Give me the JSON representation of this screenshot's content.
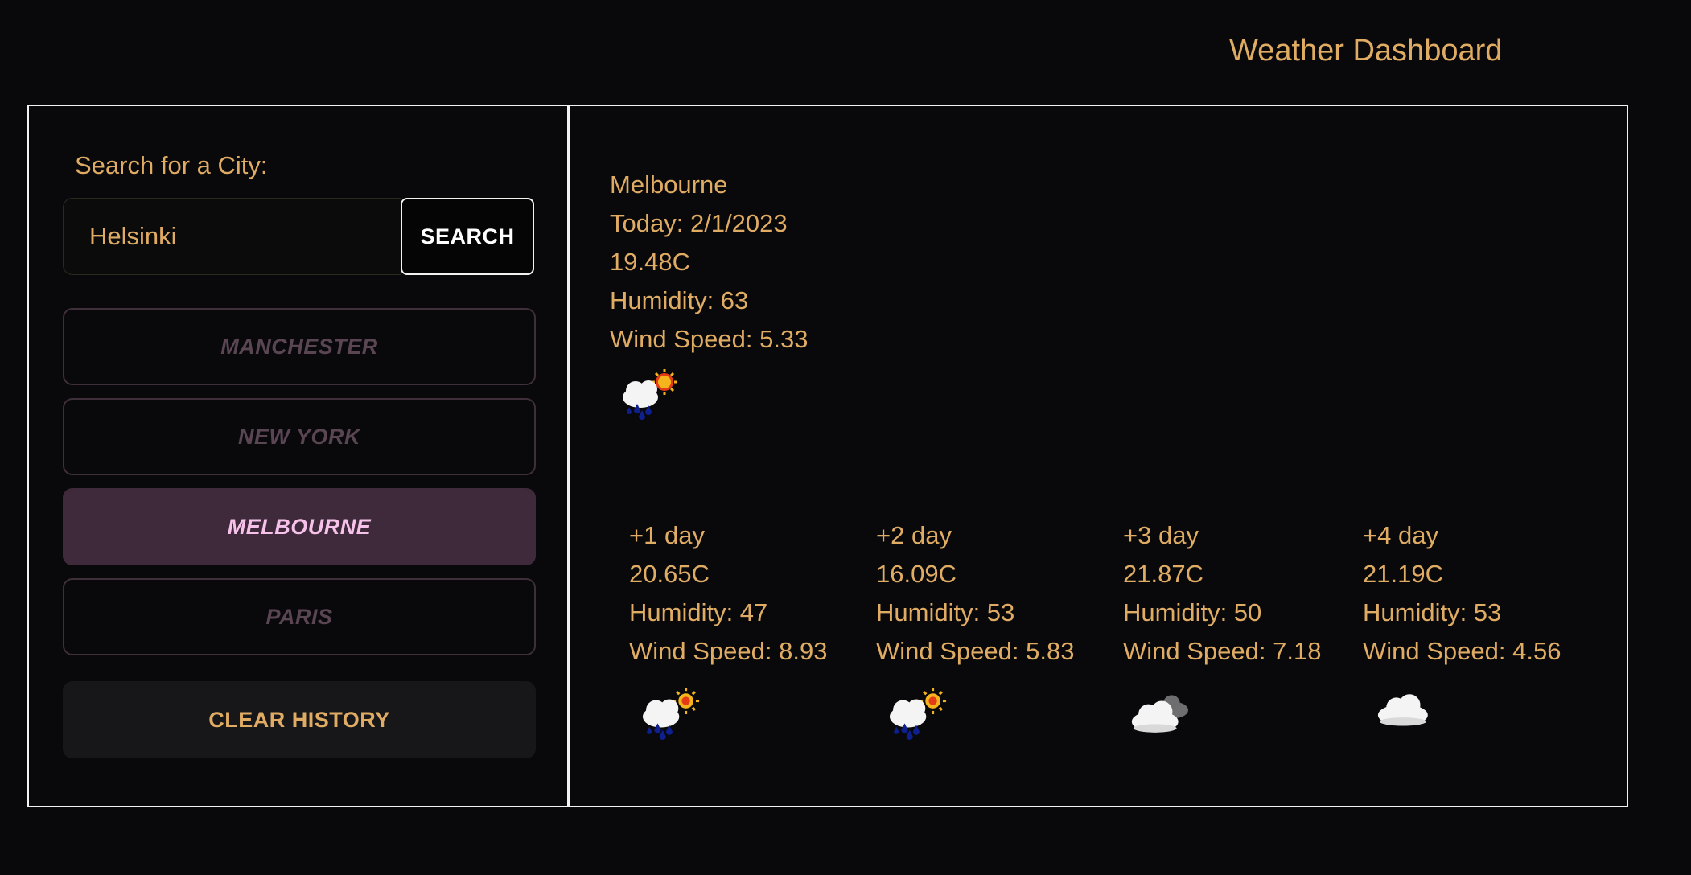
{
  "header": {
    "title": "Weather Dashboard"
  },
  "sidebar": {
    "search_label": "Search for a City:",
    "search_value": "Helsinki",
    "search_button": "SEARCH",
    "history": [
      {
        "label": "MANCHESTER",
        "active": false
      },
      {
        "label": "NEW YORK",
        "active": false
      },
      {
        "label": "MELBOURNE",
        "active": true
      },
      {
        "label": "PARIS",
        "active": false
      }
    ],
    "clear_button": "CLEAR HISTORY"
  },
  "current": {
    "city": "Melbourne",
    "date": "Today: 2/1/2023",
    "temp": "19.48C",
    "humidity": "Humidity: 63",
    "wind": "Wind Speed: 5.33",
    "icon": "rain-sun-icon"
  },
  "forecast": [
    {
      "day": "+1 day",
      "temp": "20.65C",
      "humidity": "Humidity: 47",
      "wind": "Wind Speed: 8.93",
      "icon": "rain-sun-icon"
    },
    {
      "day": "+2 day",
      "temp": "16.09C",
      "humidity": "Humidity: 53",
      "wind": "Wind Speed: 5.83",
      "icon": "rain-sun-icon"
    },
    {
      "day": "+3 day",
      "temp": "21.87C",
      "humidity": "Humidity: 50",
      "wind": "Wind Speed: 7.18",
      "icon": "broken-clouds-icon"
    },
    {
      "day": "+4 day",
      "temp": "21.19C",
      "humidity": "Humidity: 53",
      "wind": "Wind Speed: 4.56",
      "icon": "cloud-icon"
    }
  ],
  "colors": {
    "background": "#09090c",
    "text": "#e0ac63",
    "border": "#f2f2f2",
    "active_history_bg": "#3f2a3c",
    "active_history_text": "#f7c2ea",
    "inactive_history_text": "#5a4553",
    "clear_button_bg": "#17171a"
  }
}
